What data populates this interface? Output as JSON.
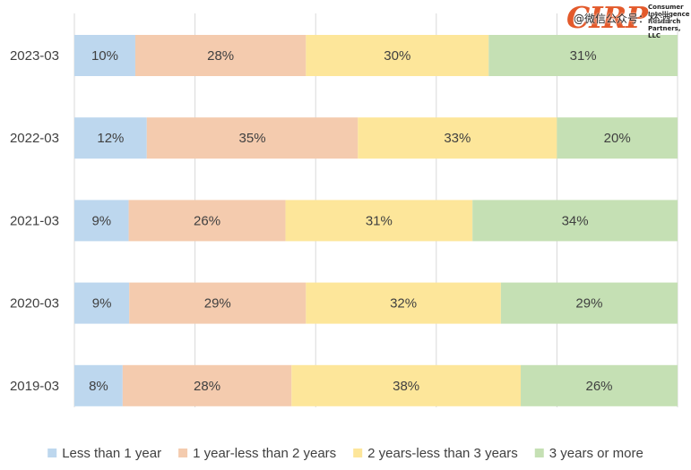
{
  "chart_data": {
    "type": "bar",
    "orientation": "horizontal",
    "stacked": "percent",
    "categories": [
      "2023-03",
      "2022-03",
      "2021-03",
      "2020-03",
      "2019-03"
    ],
    "series": [
      {
        "name": "Less than 1 year",
        "color": "#bdd7ee",
        "values": [
          10,
          12,
          9,
          9,
          8
        ]
      },
      {
        "name": "1 year-less than 2 years",
        "color": "#f4cbae",
        "values": [
          28,
          35,
          26,
          29,
          28
        ]
      },
      {
        "name": "2 years-less than 3 years",
        "color": "#fde69a",
        "values": [
          30,
          33,
          31,
          32,
          38
        ]
      },
      {
        "name": "3 years or more",
        "color": "#c5e0b4",
        "values": [
          31,
          20,
          34,
          29,
          26
        ]
      }
    ],
    "data_label_suffix": "%",
    "xlim": [
      0,
      100
    ],
    "grid": true,
    "legend": "bottom"
  },
  "branding": {
    "logo_mark": "CIRP",
    "logo_text": "Consumer\nIntelligence\nResearch\nPartners, LLC",
    "watermark": "@微信公众号：杯酒"
  }
}
